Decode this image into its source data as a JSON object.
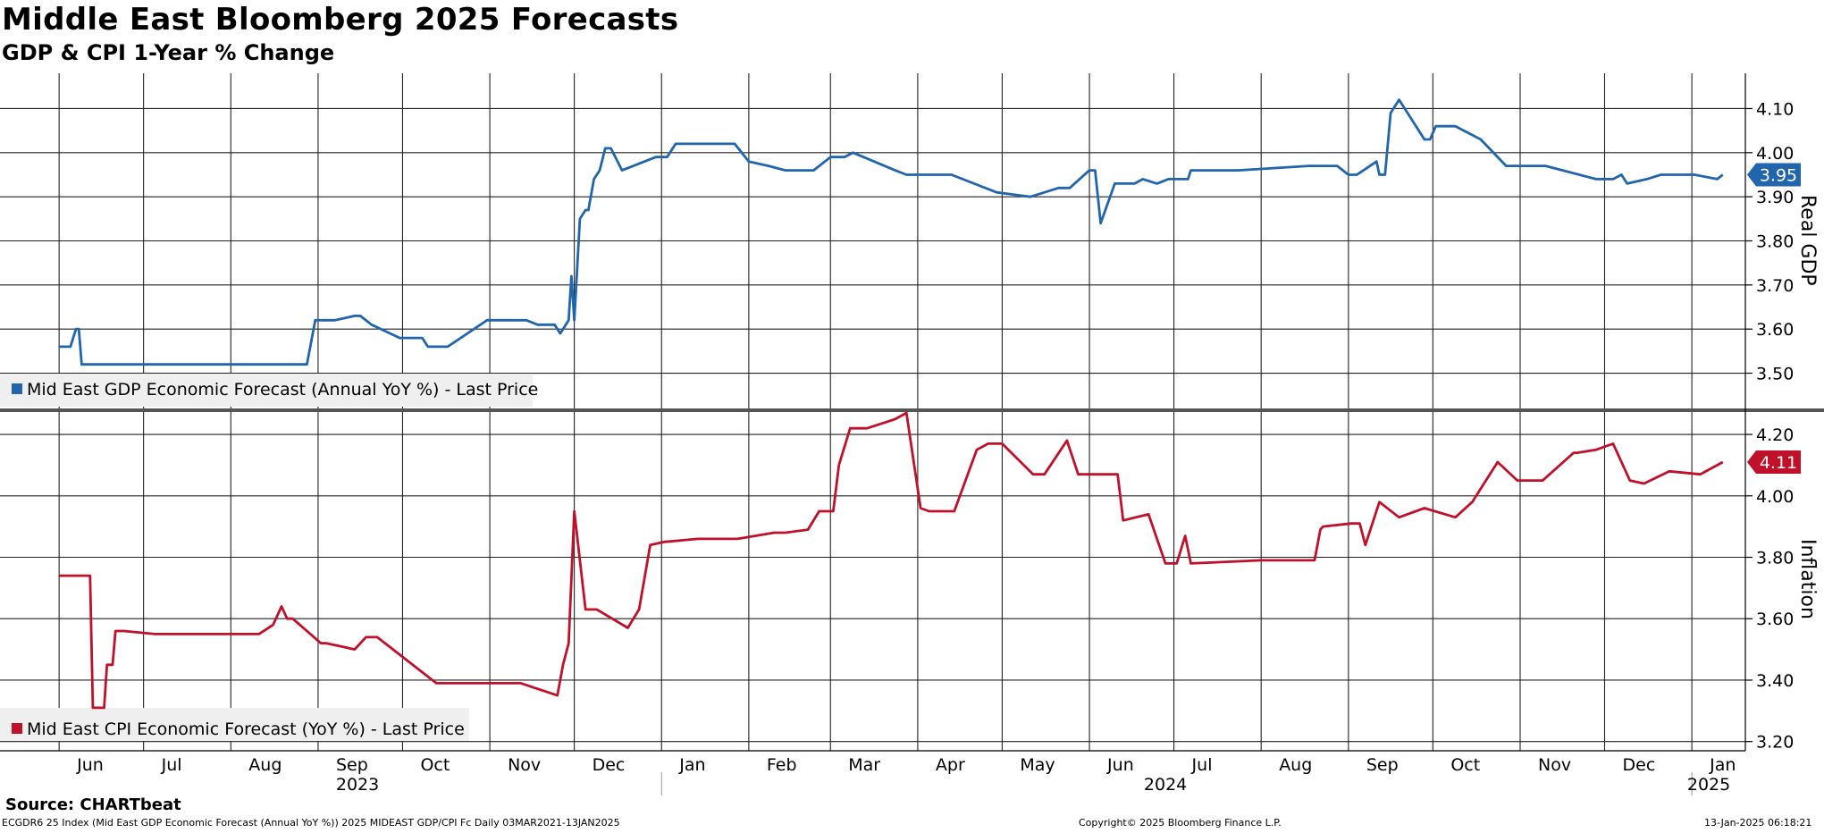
{
  "title": "Middle East Bloomberg 2025 Forecasts",
  "subtitle": "GDP & CPI 1-Year % Change",
  "chart_data": [
    {
      "type": "line",
      "panel": "top",
      "ylabel": "Real GDP",
      "ylim": [
        3.42,
        4.18
      ],
      "yticks": [
        "3.50",
        "3.60",
        "3.70",
        "3.80",
        "3.90",
        "4.00",
        "4.10"
      ],
      "ytick_values": [
        3.5,
        3.6,
        3.7,
        3.8,
        3.9,
        4.0,
        4.1
      ],
      "last_value_label": "3.95",
      "color": "#2166ac",
      "series": [
        {
          "name": "Mid East GDP Economic Forecast (Annual YoY %) - Last Price",
          "x": [
            "2023-06-01",
            "2023-06-05",
            "2023-06-07",
            "2023-06-08",
            "2023-06-09",
            "2023-06-10",
            "2023-06-12",
            "2023-06-14",
            "2023-06-20",
            "2023-06-23",
            "2023-08-28",
            "2023-08-31",
            "2023-09-07",
            "2023-09-14",
            "2023-09-16",
            "2023-09-20",
            "2023-09-30",
            "2023-10-02",
            "2023-10-08",
            "2023-10-10",
            "2023-10-17",
            "2023-10-31",
            "2023-11-14",
            "2023-11-18",
            "2023-11-24",
            "2023-11-26",
            "2023-11-29",
            "2023-11-30",
            "2023-12-01",
            "2023-12-03",
            "2023-12-05",
            "2023-12-06",
            "2023-12-08",
            "2023-12-10",
            "2023-12-12",
            "2023-12-14",
            "2023-12-18",
            "2023-12-30",
            "2024-01-03",
            "2024-01-06",
            "2024-01-27",
            "2024-02-01",
            "2024-02-08",
            "2024-02-14",
            "2024-02-24",
            "2024-03-01",
            "2024-03-06",
            "2024-03-09",
            "2024-03-24",
            "2024-03-28",
            "2024-04-03",
            "2024-04-13",
            "2024-04-29",
            "2024-05-11",
            "2024-05-21",
            "2024-05-25",
            "2024-06-01",
            "2024-06-03",
            "2024-06-05",
            "2024-06-10",
            "2024-06-17",
            "2024-06-20",
            "2024-06-25",
            "2024-06-29",
            "2024-07-06",
            "2024-07-07",
            "2024-07-09",
            "2024-07-24",
            "2024-08-18",
            "2024-08-28",
            "2024-09-01",
            "2024-09-04",
            "2024-09-11",
            "2024-09-12",
            "2024-09-14",
            "2024-09-16",
            "2024-09-19",
            "2024-09-22",
            "2024-09-28",
            "2024-09-30",
            "2024-10-02",
            "2024-10-09",
            "2024-10-18",
            "2024-10-27",
            "2024-11-07",
            "2024-11-10",
            "2024-11-28",
            "2024-12-04",
            "2024-12-07",
            "2024-12-09",
            "2024-12-16",
            "2024-12-21",
            "2025-01-02",
            "2025-01-10",
            "2025-01-12"
          ],
          "values": [
            3.56,
            3.56,
            3.6,
            3.6,
            3.52,
            3.52,
            3.52,
            3.52,
            3.52,
            3.52,
            3.52,
            3.62,
            3.62,
            3.63,
            3.63,
            3.61,
            3.58,
            3.58,
            3.58,
            3.56,
            3.56,
            3.62,
            3.62,
            3.61,
            3.61,
            3.59,
            3.62,
            3.72,
            3.62,
            3.85,
            3.87,
            3.87,
            3.94,
            3.96,
            4.01,
            4.01,
            3.96,
            3.99,
            3.99,
            4.02,
            4.02,
            3.98,
            3.97,
            3.96,
            3.96,
            3.99,
            3.99,
            4.0,
            3.96,
            3.95,
            3.95,
            3.95,
            3.91,
            3.9,
            3.92,
            3.92,
            3.96,
            3.96,
            3.84,
            3.93,
            3.93,
            3.94,
            3.93,
            3.94,
            3.94,
            3.96,
            3.96,
            3.96,
            3.97,
            3.97,
            3.95,
            3.95,
            3.98,
            3.95,
            3.95,
            4.09,
            4.12,
            4.09,
            4.03,
            4.03,
            4.06,
            4.06,
            4.03,
            3.97,
            3.97,
            3.97,
            3.94,
            3.94,
            3.95,
            3.93,
            3.94,
            3.95,
            3.95,
            3.94,
            3.95
          ]
        }
      ]
    },
    {
      "type": "line",
      "panel": "bottom",
      "ylabel": "Inflation",
      "ylim": [
        3.17,
        4.27
      ],
      "yticks": [
        "3.20",
        "3.40",
        "3.60",
        "3.80",
        "4.00",
        "4.20"
      ],
      "ytick_values": [
        3.2,
        3.4,
        3.6,
        3.8,
        4.0,
        4.2
      ],
      "last_value_label": "4.11",
      "color": "#c0102a",
      "series": [
        {
          "name": "Mid East CPI Economic Forecast (YoY %) - Last Price",
          "x": [
            "2023-06-01",
            "2023-06-12",
            "2023-06-13",
            "2023-06-17",
            "2023-06-18",
            "2023-06-20",
            "2023-06-21",
            "2023-06-24",
            "2023-07-05",
            "2023-08-11",
            "2023-08-16",
            "2023-08-19",
            "2023-08-21",
            "2023-08-23",
            "2023-09-02",
            "2023-09-04",
            "2023-09-14",
            "2023-09-18",
            "2023-09-22",
            "2023-10-13",
            "2023-11-12",
            "2023-11-25",
            "2023-11-27",
            "2023-11-29",
            "2023-12-01",
            "2023-12-05",
            "2023-12-09",
            "2023-12-20",
            "2023-12-24",
            "2023-12-28",
            "2024-01-02",
            "2024-01-14",
            "2024-01-28",
            "2024-02-10",
            "2024-02-14",
            "2024-02-22",
            "2024-02-26",
            "2024-03-02",
            "2024-03-04",
            "2024-03-08",
            "2024-03-14",
            "2024-03-24",
            "2024-03-28",
            "2024-04-02",
            "2024-04-05",
            "2024-04-06",
            "2024-04-09",
            "2024-04-14",
            "2024-04-22",
            "2024-04-26",
            "2024-05-01",
            "2024-05-12",
            "2024-05-16",
            "2024-05-24",
            "2024-05-28",
            "2024-05-31",
            "2024-06-11",
            "2024-06-13",
            "2024-06-22",
            "2024-06-28",
            "2024-07-02",
            "2024-07-05",
            "2024-07-07",
            "2024-08-01",
            "2024-08-08",
            "2024-08-12",
            "2024-08-20",
            "2024-08-22",
            "2024-08-23",
            "2024-09-02",
            "2024-09-05",
            "2024-09-07",
            "2024-09-12",
            "2024-09-19",
            "2024-09-28",
            "2024-10-09",
            "2024-10-15",
            "2024-10-24",
            "2024-10-31",
            "2024-11-09",
            "2024-11-20",
            "2024-11-21",
            "2024-11-28",
            "2024-12-04",
            "2024-12-10",
            "2024-12-15",
            "2024-12-24",
            "2025-01-04",
            "2025-01-12"
          ],
          "values": [
            3.74,
            3.74,
            3.31,
            3.31,
            3.45,
            3.45,
            3.56,
            3.56,
            3.55,
            3.55,
            3.58,
            3.64,
            3.6,
            3.6,
            3.52,
            3.52,
            3.5,
            3.54,
            3.54,
            3.39,
            3.39,
            3.35,
            3.45,
            3.52,
            3.95,
            3.63,
            3.63,
            3.57,
            3.63,
            3.84,
            3.85,
            3.86,
            3.86,
            3.88,
            3.88,
            3.89,
            3.95,
            3.95,
            4.1,
            4.22,
            4.22,
            4.25,
            4.27,
            3.96,
            3.95,
            3.95,
            3.95,
            3.95,
            4.15,
            4.17,
            4.17,
            4.07,
            4.07,
            4.18,
            4.07,
            4.07,
            4.07,
            3.92,
            3.94,
            3.78,
            3.78,
            3.87,
            3.78,
            3.79,
            3.79,
            3.79,
            3.79,
            3.89,
            3.9,
            3.91,
            3.91,
            3.84,
            3.98,
            3.93,
            3.96,
            3.93,
            3.98,
            4.11,
            4.05,
            4.05,
            4.14,
            4.14,
            4.15,
            4.17,
            4.05,
            4.04,
            4.08,
            4.07,
            4.11
          ]
        }
      ]
    }
  ],
  "x_axis": {
    "months": [
      {
        "label": "Jun",
        "date": "2023-06-01"
      },
      {
        "label": "Jul",
        "date": "2023-07-01"
      },
      {
        "label": "Aug",
        "date": "2023-08-01"
      },
      {
        "label": "Sep",
        "date": "2023-09-01"
      },
      {
        "label": "Oct",
        "date": "2023-10-01"
      },
      {
        "label": "Nov",
        "date": "2023-11-01"
      },
      {
        "label": "Dec",
        "date": "2023-12-01"
      },
      {
        "label": "Jan",
        "date": "2024-01-01"
      },
      {
        "label": "Feb",
        "date": "2024-02-01"
      },
      {
        "label": "Mar",
        "date": "2024-03-01"
      },
      {
        "label": "Apr",
        "date": "2024-04-01"
      },
      {
        "label": "May",
        "date": "2024-05-01"
      },
      {
        "label": "Jun",
        "date": "2024-06-01"
      },
      {
        "label": "Jul",
        "date": "2024-07-01"
      },
      {
        "label": "Aug",
        "date": "2024-08-01"
      },
      {
        "label": "Sep",
        "date": "2024-09-01"
      },
      {
        "label": "Oct",
        "date": "2024-10-01"
      },
      {
        "label": "Nov",
        "date": "2024-11-01"
      },
      {
        "label": "Dec",
        "date": "2024-12-01"
      },
      {
        "label": "Jan",
        "date": "2025-01-01"
      }
    ],
    "years": [
      {
        "label": "2023",
        "date": "2023-09-15"
      },
      {
        "label": "2024",
        "date": "2024-06-28"
      },
      {
        "label": "2025",
        "date": "2025-01-07"
      }
    ],
    "year_boundaries": [
      "2024-01-01",
      "2025-01-01"
    ]
  },
  "footer": {
    "source": "Source: CHARTbeat",
    "meta": "ECGDR6 25 Index (Mid East GDP Economic Forecast (Annual YoY %)) 2025 MIDEAST GDP/CPI Fc  Daily 03MAR2021-13JAN2025",
    "copyright": "Copyright© 2025 Bloomberg Finance L.P.",
    "timestamp": "13-Jan-2025 06:18:21"
  }
}
